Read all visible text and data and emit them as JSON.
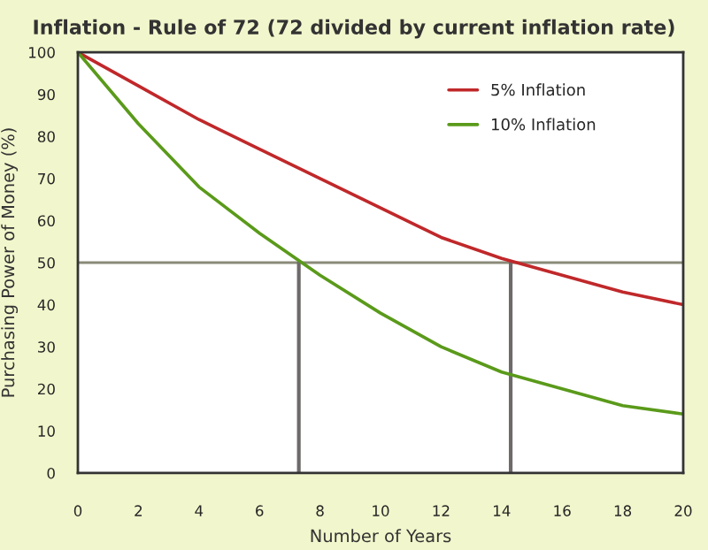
{
  "chart_data": {
    "type": "line",
    "title": "Inflation - Rule of 72 (72 divided by current inflation rate)",
    "xlabel": "Number of Years",
    "ylabel": "Purchasing Power of Money (%)",
    "x": [
      0,
      2,
      4,
      6,
      8,
      10,
      12,
      14,
      16,
      18,
      20
    ],
    "series": [
      {
        "name": "5% Inflation",
        "color": "#c0282a",
        "values": [
          100,
          92,
          84,
          77,
          70,
          63,
          56,
          51,
          47,
          43,
          40
        ]
      },
      {
        "name": "10% Inflation",
        "color": "#5a9a1a",
        "values": [
          100,
          83,
          68,
          57,
          47,
          38,
          30,
          24,
          20,
          16,
          14
        ]
      }
    ],
    "xlim": [
      0,
      20
    ],
    "xticks": [
      0,
      2,
      4,
      6,
      8,
      10,
      12,
      14,
      16,
      18,
      20
    ],
    "ylim": [
      0,
      100
    ],
    "yticks": [
      0,
      10,
      20,
      30,
      40,
      50,
      60,
      70,
      80,
      90,
      100
    ],
    "ref_lines": [
      {
        "axis": "y",
        "value": 50,
        "color": "#8a8a7a"
      },
      {
        "axis": "x",
        "value": 7.3,
        "color": "#6e6a6a"
      },
      {
        "axis": "x",
        "value": 14.3,
        "color": "#6e6a6a"
      }
    ],
    "legend": "top right",
    "grid": false
  }
}
